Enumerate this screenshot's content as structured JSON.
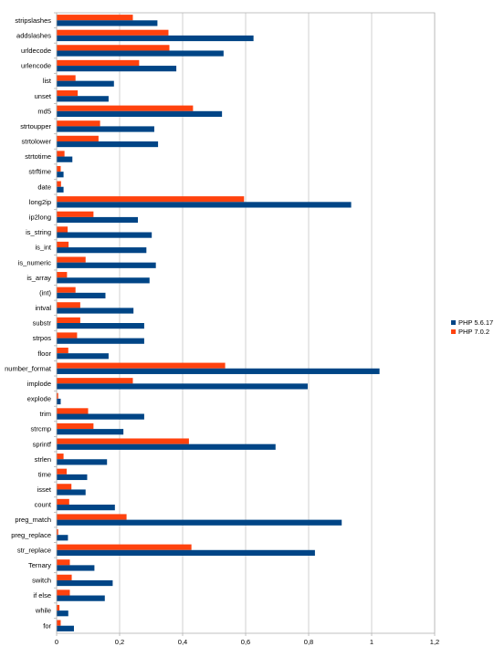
{
  "chart_data": {
    "type": "bar",
    "orientation": "horizontal",
    "categories": [
      "stripslashes",
      "addslashes",
      "urldecode",
      "urlencode",
      "list",
      "unset",
      "md5",
      "strtoupper",
      "strtolower",
      "strtotime",
      "strftime",
      "date",
      "long2ip",
      "ip2long",
      "is_string",
      "is_int",
      "is_numeric",
      "is_array",
      "(int)",
      "intval",
      "substr",
      "strpos",
      "floor",
      "number_format",
      "implode",
      "explode",
      "trim",
      "strcmp",
      "sprintf",
      "strlen",
      "time",
      "isset",
      "count",
      "preg_match",
      "preg_replace",
      "str_replace",
      "Ternary",
      "switch",
      "if else",
      "while",
      "for"
    ],
    "series": [
      {
        "name": "PHP 5.6.17",
        "color": "#004586",
        "values": [
          0.32,
          0.625,
          0.53,
          0.38,
          0.182,
          0.165,
          0.525,
          0.31,
          0.322,
          0.05,
          0.022,
          0.022,
          0.935,
          0.258,
          0.302,
          0.285,
          0.315,
          0.295,
          0.155,
          0.244,
          0.278,
          0.278,
          0.165,
          1.025,
          0.797,
          0.013,
          0.278,
          0.212,
          0.695,
          0.16,
          0.097,
          0.092,
          0.185,
          0.905,
          0.036,
          0.82,
          0.12,
          0.178,
          0.153,
          0.037,
          0.055
        ]
      },
      {
        "name": "PHP 7.0.2",
        "color": "#ff420e",
        "values": [
          0.242,
          0.355,
          0.358,
          0.262,
          0.06,
          0.067,
          0.433,
          0.138,
          0.133,
          0.025,
          0.013,
          0.014,
          0.595,
          0.117,
          0.035,
          0.038,
          0.092,
          0.033,
          0.06,
          0.075,
          0.075,
          0.065,
          0.037,
          0.535,
          0.242,
          0.005,
          0.1,
          0.117,
          0.42,
          0.022,
          0.032,
          0.047,
          0.04,
          0.222,
          0.005,
          0.428,
          0.042,
          0.048,
          0.042,
          0.009,
          0.013
        ]
      }
    ],
    "x_ticks": [
      "0",
      "0,2",
      "0,4",
      "0,6",
      "0,8",
      "1",
      "1,2"
    ],
    "xlim": [
      0,
      1.2
    ],
    "grid": "vertical",
    "legend_position": "right",
    "legend_order": [
      "PHP 5.6.17",
      "PHP 7.0.2"
    ]
  }
}
